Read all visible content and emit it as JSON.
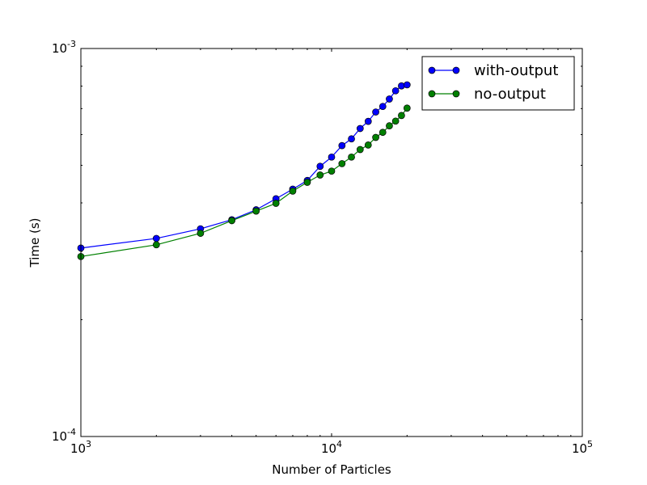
{
  "chart_data": {
    "type": "line",
    "xscale": "log",
    "yscale": "log",
    "xlabel": "Number of Particles",
    "ylabel": "Time (s)",
    "xlim": [
      1000,
      100000
    ],
    "ylim": [
      0.0001,
      0.001
    ],
    "x_ticks": [
      {
        "value": 1000,
        "base": "10",
        "exp": "3"
      },
      {
        "value": 10000,
        "base": "10",
        "exp": "4"
      },
      {
        "value": 100000,
        "base": "10",
        "exp": "5"
      }
    ],
    "y_ticks": [
      {
        "value": 0.0001,
        "base": "10",
        "exp": "-4"
      },
      {
        "value": 0.001,
        "base": "10",
        "exp": "-3"
      }
    ],
    "grid": false,
    "legend_position": "top-right",
    "series": [
      {
        "name": "with-output",
        "color": "#0000ff",
        "x": [
          1000,
          2000,
          3000,
          4000,
          5000,
          6000,
          7000,
          8000,
          9000,
          10000,
          11000,
          12000,
          13000,
          14000,
          15000,
          16000,
          17000,
          18000,
          19000,
          20000
        ],
        "y": [
          0.000306,
          0.000324,
          0.000343,
          0.000362,
          0.000384,
          0.00041,
          0.000434,
          0.000457,
          0.000497,
          0.000525,
          0.000562,
          0.000585,
          0.000622,
          0.000649,
          0.000686,
          0.000709,
          0.000741,
          0.000778,
          0.000801,
          0.000806
        ]
      },
      {
        "name": "no-output",
        "color": "#008000",
        "x": [
          1000,
          2000,
          3000,
          4000,
          5000,
          6000,
          7000,
          8000,
          9000,
          10000,
          11000,
          12000,
          13000,
          14000,
          15000,
          16000,
          17000,
          18000,
          19000,
          20000
        ],
        "y": [
          0.000291,
          0.000312,
          0.000334,
          0.00036,
          0.000381,
          0.000399,
          0.000429,
          0.000452,
          0.000472,
          0.000483,
          0.000505,
          0.000525,
          0.000549,
          0.000564,
          0.00059,
          0.000608,
          0.000632,
          0.00065,
          0.000672,
          0.000702
        ]
      }
    ]
  }
}
